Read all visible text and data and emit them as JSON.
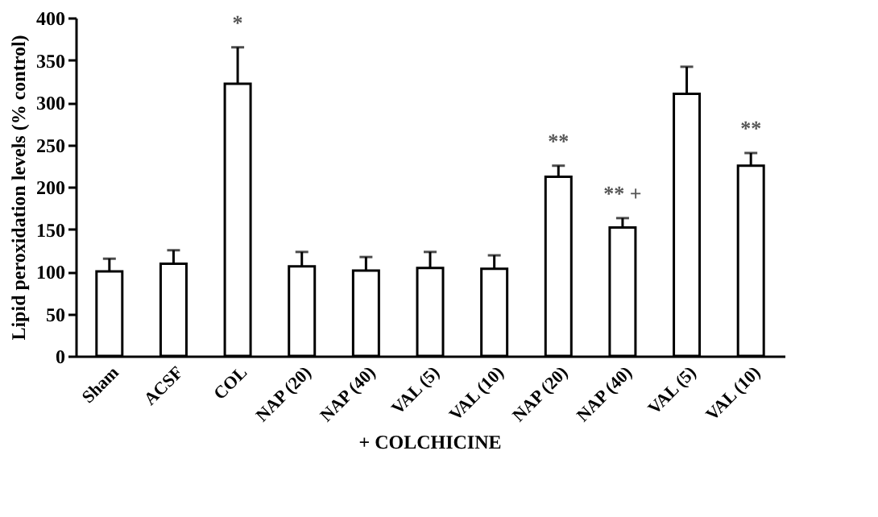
{
  "chart_data": {
    "type": "bar",
    "ylabel": "Lipid peroxidation levels (% control)",
    "categories": [
      "Sham",
      "ACSF",
      "COL",
      "NAP (20)",
      "NAP (40)",
      "VAL (5)",
      "VAL (10)",
      "NAP (20)",
      "NAP (40)",
      "VAL (5)",
      "VAL (10)"
    ],
    "values": [
      100,
      109,
      322,
      106,
      101,
      104,
      103,
      212,
      152,
      310,
      225
    ],
    "errors": [
      15,
      16,
      43,
      17,
      16,
      19,
      16,
      13,
      11,
      32,
      15
    ],
    "color": "#ffffff",
    "ylim": [
      0,
      400
    ],
    "yticks": [
      0,
      50,
      100,
      150,
      200,
      250,
      300,
      350,
      400
    ],
    "annotations": [
      "*",
      "**",
      "** +",
      "**",
      "+ COLCHICINE"
    ]
  }
}
